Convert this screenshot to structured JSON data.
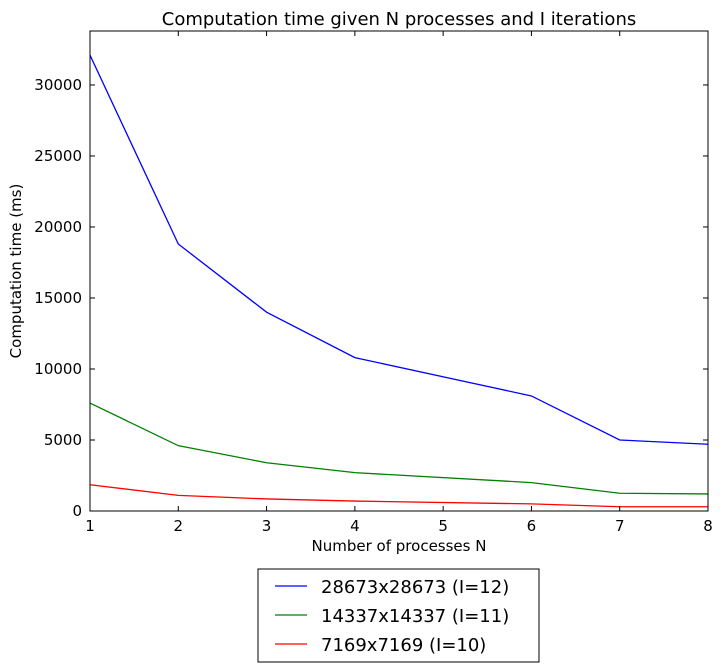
{
  "chart_data": {
    "type": "line",
    "title": "Computation time given N processes and I iterations",
    "xlabel": "Number of processes N",
    "ylabel": "Computation time (ms)",
    "xlim": [
      1,
      8
    ],
    "ylim": [
      0,
      33800
    ],
    "xticks": [
      1,
      2,
      3,
      4,
      5,
      6,
      7,
      8
    ],
    "yticks": [
      0,
      5000,
      10000,
      15000,
      20000,
      25000,
      30000
    ],
    "grid": false,
    "legend_position": "below-center",
    "x": [
      1,
      2,
      3,
      4,
      6,
      7,
      8
    ],
    "series": [
      {
        "name": "28673x28673 (I=12)",
        "color": "#0000ff",
        "values": [
          32100,
          18800,
          14000,
          10800,
          8100,
          5000,
          4700
        ]
      },
      {
        "name": "14337x14337 (I=11)",
        "color": "#008000",
        "values": [
          7600,
          4600,
          3400,
          2700,
          2000,
          1250,
          1200
        ]
      },
      {
        "name": "7169x7169 (I=10)",
        "color": "#ff0000",
        "values": [
          1850,
          1100,
          850,
          700,
          500,
          300,
          300
        ]
      }
    ]
  }
}
